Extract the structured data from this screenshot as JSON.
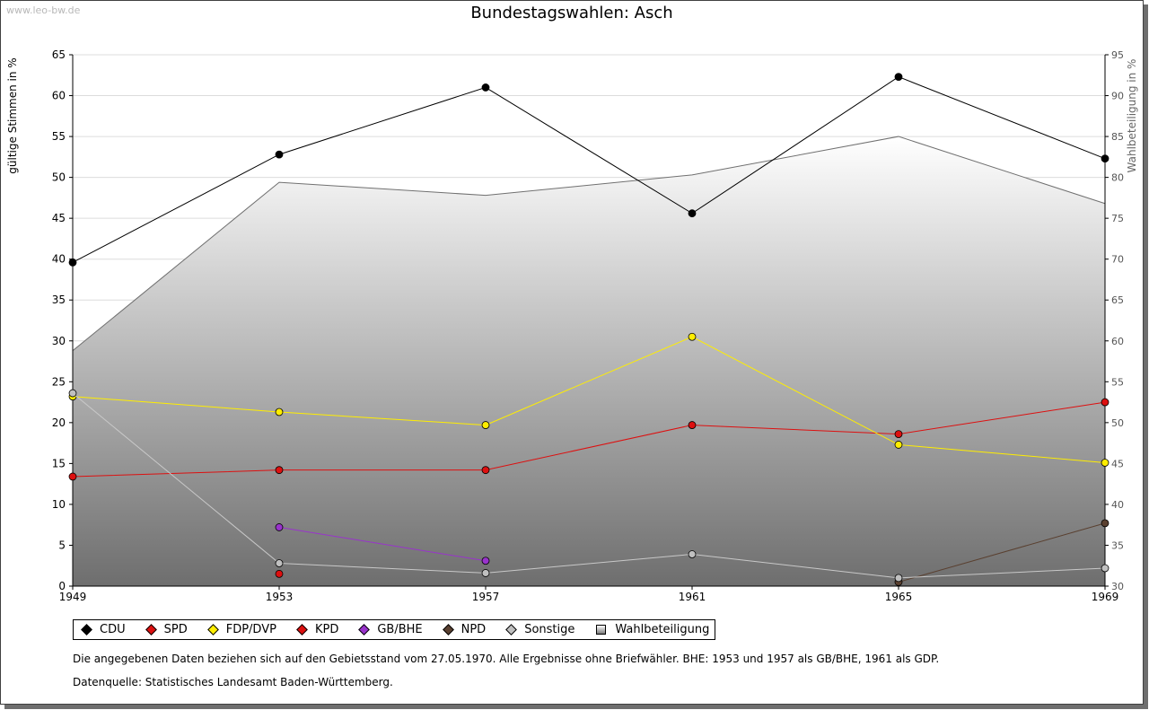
{
  "watermark": "www.leo-bw.de",
  "chart_data": {
    "type": "line",
    "title": "Bundestagswahlen: Asch",
    "ylabel": "gültige Stimmen in %",
    "y2label": "Wahlbeteiligung in %",
    "x": [
      1949,
      1953,
      1957,
      1961,
      1965,
      1969
    ],
    "xlim": [
      1949,
      1969
    ],
    "ylim": [
      0,
      65
    ],
    "y2lim": [
      30,
      95
    ],
    "yticks": [
      0,
      5,
      10,
      15,
      20,
      25,
      30,
      35,
      40,
      45,
      50,
      55,
      60,
      65
    ],
    "y2ticks": [
      30,
      35,
      40,
      45,
      50,
      55,
      60,
      65,
      70,
      75,
      80,
      85,
      90,
      95
    ],
    "grid": true,
    "turnout": {
      "name": "Wahlbeteiligung",
      "values": [
        58.8,
        79.4,
        77.8,
        80.3,
        85.0,
        76.8
      ]
    },
    "series": [
      {
        "name": "CDU",
        "color": "#000000",
        "values": [
          39.6,
          52.8,
          61.0,
          45.6,
          62.3,
          52.3
        ]
      },
      {
        "name": "SPD",
        "color": "#dd1010",
        "values": [
          13.4,
          14.2,
          14.2,
          19.7,
          18.6,
          22.5
        ]
      },
      {
        "name": "FDP/DVP",
        "color": "#ffee00",
        "values": [
          23.2,
          21.3,
          19.7,
          30.5,
          17.3,
          15.1
        ]
      },
      {
        "name": "KPD",
        "color": "#dd1010",
        "values": [
          null,
          1.5,
          null,
          null,
          null,
          null
        ]
      },
      {
        "name": "GB/BHE",
        "color": "#9933cc",
        "values": [
          null,
          7.2,
          3.1,
          null,
          null,
          null
        ]
      },
      {
        "name": "NPD",
        "color": "#5a4030",
        "values": [
          null,
          null,
          null,
          null,
          0.5,
          7.7
        ]
      },
      {
        "name": "Sonstige",
        "color": "#c0c0c0",
        "values": [
          23.6,
          2.8,
          1.6,
          3.9,
          1.0,
          2.2
        ]
      }
    ]
  },
  "legend": {
    "items": [
      {
        "label": "CDU",
        "color": "#000000"
      },
      {
        "label": "SPD",
        "color": "#dd1010"
      },
      {
        "label": "FDP/DVP",
        "color": "#ffee00"
      },
      {
        "label": "KPD",
        "color": "#dd1010"
      },
      {
        "label": "GB/BHE",
        "color": "#9933cc"
      },
      {
        "label": "NPD",
        "color": "#5a4030"
      },
      {
        "label": "Sonstige",
        "color": "#c0c0c0"
      }
    ],
    "turnout_label": "Wahlbeteiligung"
  },
  "footnotes": {
    "note": "Die angegebenen Daten beziehen sich auf den Gebietsstand vom 27.05.1970. Alle Ergebnisse ohne Briefwähler. BHE: 1953 und 1957 als GB/BHE, 1961 als GDP.",
    "source": "Datenquelle: Statistisches Landesamt Baden-Württemberg."
  }
}
